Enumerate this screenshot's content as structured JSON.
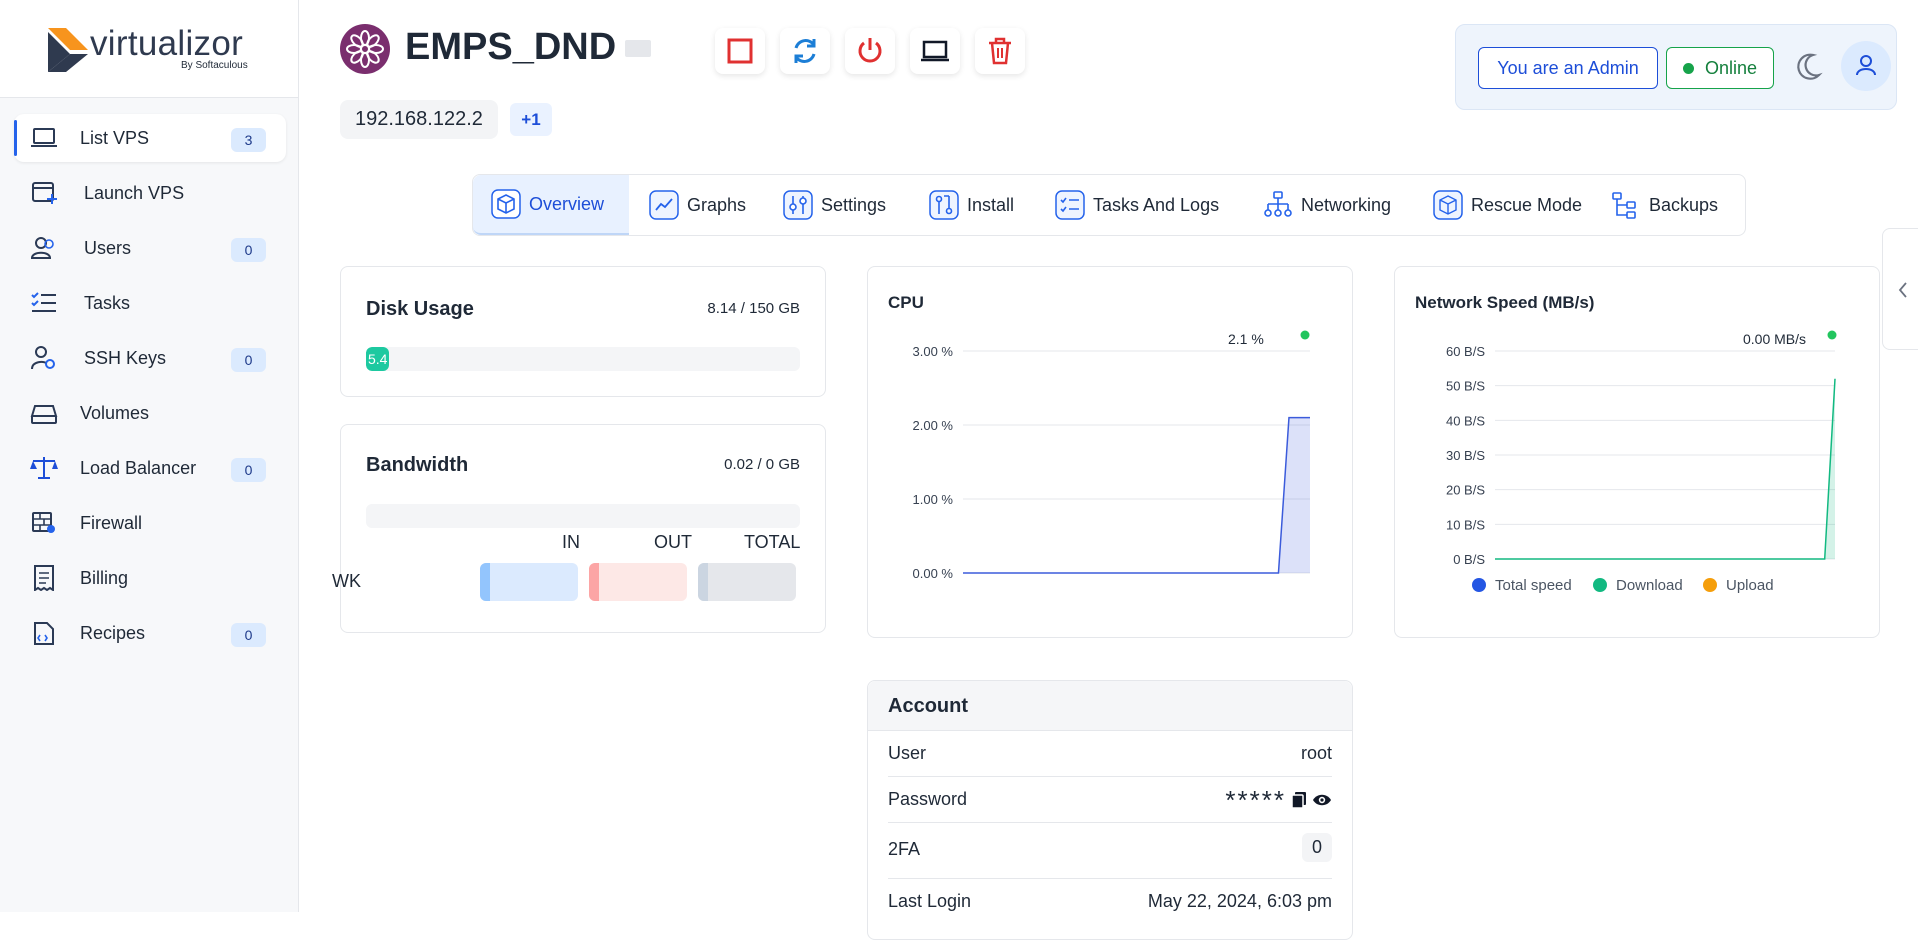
{
  "brand": {
    "name": "virtualizor",
    "sub": "By Softaculous"
  },
  "sidebar": {
    "items": [
      {
        "label": "List VPS",
        "badge": "3",
        "icon": "laptop-icon",
        "active": true
      },
      {
        "label": "Launch VPS",
        "badge": "",
        "icon": "window-plus-icon"
      },
      {
        "label": "Users",
        "badge": "0",
        "icon": "users-icon"
      },
      {
        "label": "Tasks",
        "badge": "",
        "icon": "checklist-icon"
      },
      {
        "label": "SSH Keys",
        "badge": "0",
        "icon": "user-key-icon"
      },
      {
        "label": "Volumes",
        "badge": "",
        "icon": "drive-icon"
      },
      {
        "label": "Load Balancer",
        "badge": "0",
        "icon": "scale-icon"
      },
      {
        "label": "Firewall",
        "badge": "",
        "icon": "firewall-icon"
      },
      {
        "label": "Billing",
        "badge": "",
        "icon": "billing-icon"
      },
      {
        "label": "Recipes",
        "badge": "0",
        "icon": "recipe-icon"
      }
    ]
  },
  "vm": {
    "name": "EMPS_DND",
    "ip": "192.168.122.2",
    "more_ips": "+1"
  },
  "actions": [
    "stop-icon",
    "restart-icon",
    "power-icon",
    "console-icon",
    "delete-icon"
  ],
  "status": {
    "admin_label": "You are an Admin",
    "online_label": "Online"
  },
  "tabs": [
    {
      "label": "Overview",
      "icon": "cube-icon"
    },
    {
      "label": "Graphs",
      "icon": "graph-icon"
    },
    {
      "label": "Settings",
      "icon": "sliders-icon"
    },
    {
      "label": "Install",
      "icon": "install-icon"
    },
    {
      "label": "Tasks And Logs",
      "icon": "list-check-icon"
    },
    {
      "label": "Networking",
      "icon": "network-icon"
    },
    {
      "label": "Rescue Mode",
      "icon": "rescue-icon"
    },
    {
      "label": "Backups",
      "icon": "backups-icon"
    }
  ],
  "disk": {
    "title": "Disk Usage",
    "value": "8.14 / 150 GB",
    "bar_label": "5.4",
    "percent": 5.4
  },
  "bandwidth": {
    "title": "Bandwidth",
    "value": "0.02 / 0 GB",
    "cols": [
      "IN",
      "OUT",
      "TOTAL"
    ],
    "row_label": "WK",
    "colors": {
      "in": "#93c5fd",
      "out": "#fca5a5",
      "total": "#cbd5e1"
    }
  },
  "cpu": {
    "title": "CPU",
    "current": "2.1 %"
  },
  "network": {
    "title": "Network Speed (MB/s)",
    "current": "0.00 MB/s"
  },
  "chart_data": [
    {
      "type": "area",
      "title": "CPU",
      "ylabel": "",
      "yticks": [
        "0.00 %",
        "1.00 %",
        "2.00 %",
        "3.00 %"
      ],
      "ylim": [
        0,
        3
      ],
      "series": [
        {
          "values": [
            0,
            0,
            0,
            0,
            0,
            0,
            0,
            0,
            0,
            0,
            0,
            0,
            0,
            0,
            0,
            0,
            0,
            0,
            0,
            0,
            0,
            0,
            0,
            0,
            0,
            0,
            0,
            0,
            0,
            0,
            0,
            2.1,
            2.1,
            2.1
          ],
          "color": "#3b5bdb"
        }
      ]
    },
    {
      "type": "area",
      "title": "Network Speed (MB/s)",
      "yticks": [
        "0 B/S",
        "10 B/S",
        "20 B/S",
        "30 B/S",
        "40 B/S",
        "50 B/S",
        "60 B/S"
      ],
      "ylim": [
        0,
        60
      ],
      "legend": [
        "Total speed",
        "Download",
        "Upload"
      ],
      "colors": [
        "#2456e3",
        "#12b981",
        "#f59e0b"
      ],
      "series": [
        {
          "name": "Download",
          "values": [
            0,
            0,
            0,
            0,
            0,
            0,
            0,
            0,
            0,
            0,
            0,
            0,
            0,
            0,
            0,
            0,
            0,
            0,
            0,
            0,
            0,
            0,
            0,
            0,
            0,
            0,
            0,
            0,
            0,
            0,
            0,
            0,
            0,
            52
          ],
          "color": "#12b981"
        }
      ]
    }
  ],
  "account": {
    "title": "Account",
    "rows": [
      {
        "key": "User",
        "value": "root"
      },
      {
        "key": "Password",
        "value": "*****"
      },
      {
        "key": "2FA",
        "value": "0"
      },
      {
        "key": "Last Login",
        "value": "May 22, 2024, 6:03 pm"
      }
    ]
  }
}
